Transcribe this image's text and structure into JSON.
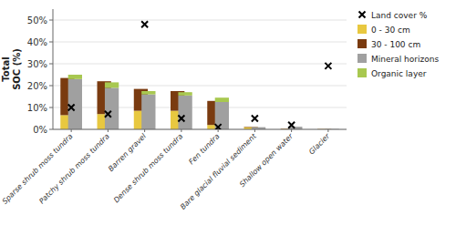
{
  "chart_data": {
    "type": "bar",
    "stacked": true,
    "categories": [
      "Sparse shrub moss tundra",
      "Patchy shrub moss tundra",
      "Barren gravel",
      "Dense shrub moss tundra",
      "Fen tundra",
      "Bare glacial fluvial sediment",
      "Shallow open water",
      "Glacier"
    ],
    "y_label": "Total\nSOC (%)",
    "ylim": [
      0,
      55
    ],
    "yticks": [
      {
        "value": 0,
        "label": "0%"
      },
      {
        "value": 10,
        "label": "10%"
      },
      {
        "value": 20,
        "label": "20%"
      },
      {
        "value": 30,
        "label": "30%"
      },
      {
        "value": 40,
        "label": "40%"
      },
      {
        "value": 50,
        "label": "50%"
      }
    ],
    "grid": true,
    "legend": "right",
    "series": [
      {
        "name": "Land cover %",
        "type": "scatter",
        "marker": "x",
        "color": "black",
        "values": [
          10.0,
          7.0,
          48.0,
          5.0,
          1.0,
          5.0,
          2.0,
          29.0
        ]
      },
      {
        "name": "0 - 30 cm",
        "type": "bar",
        "stack": 0,
        "color": "#e8c840",
        "values": [
          6.5,
          7.0,
          8.5,
          8.5,
          2.0,
          1.0,
          0.2,
          0.1
        ]
      },
      {
        "name": "30 - 100 cm",
        "type": "bar",
        "stack": 0,
        "color": "#7a3b10",
        "values": [
          17.0,
          15.0,
          10.0,
          9.0,
          11.0,
          0.2,
          0.2,
          0.1
        ]
      },
      {
        "name": "Mineral horizons",
        "type": "bar",
        "stack": 1,
        "color": "#a0a0a0",
        "values": [
          23.0,
          19.0,
          16.0,
          15.5,
          12.5,
          1.0,
          1.2,
          0.2
        ]
      },
      {
        "name": "Organic layer",
        "type": "bar",
        "stack": 1,
        "color": "#a8c850",
        "values": [
          2.0,
          2.5,
          1.5,
          1.5,
          2.0,
          0.0,
          0.0,
          0.0
        ]
      }
    ]
  }
}
